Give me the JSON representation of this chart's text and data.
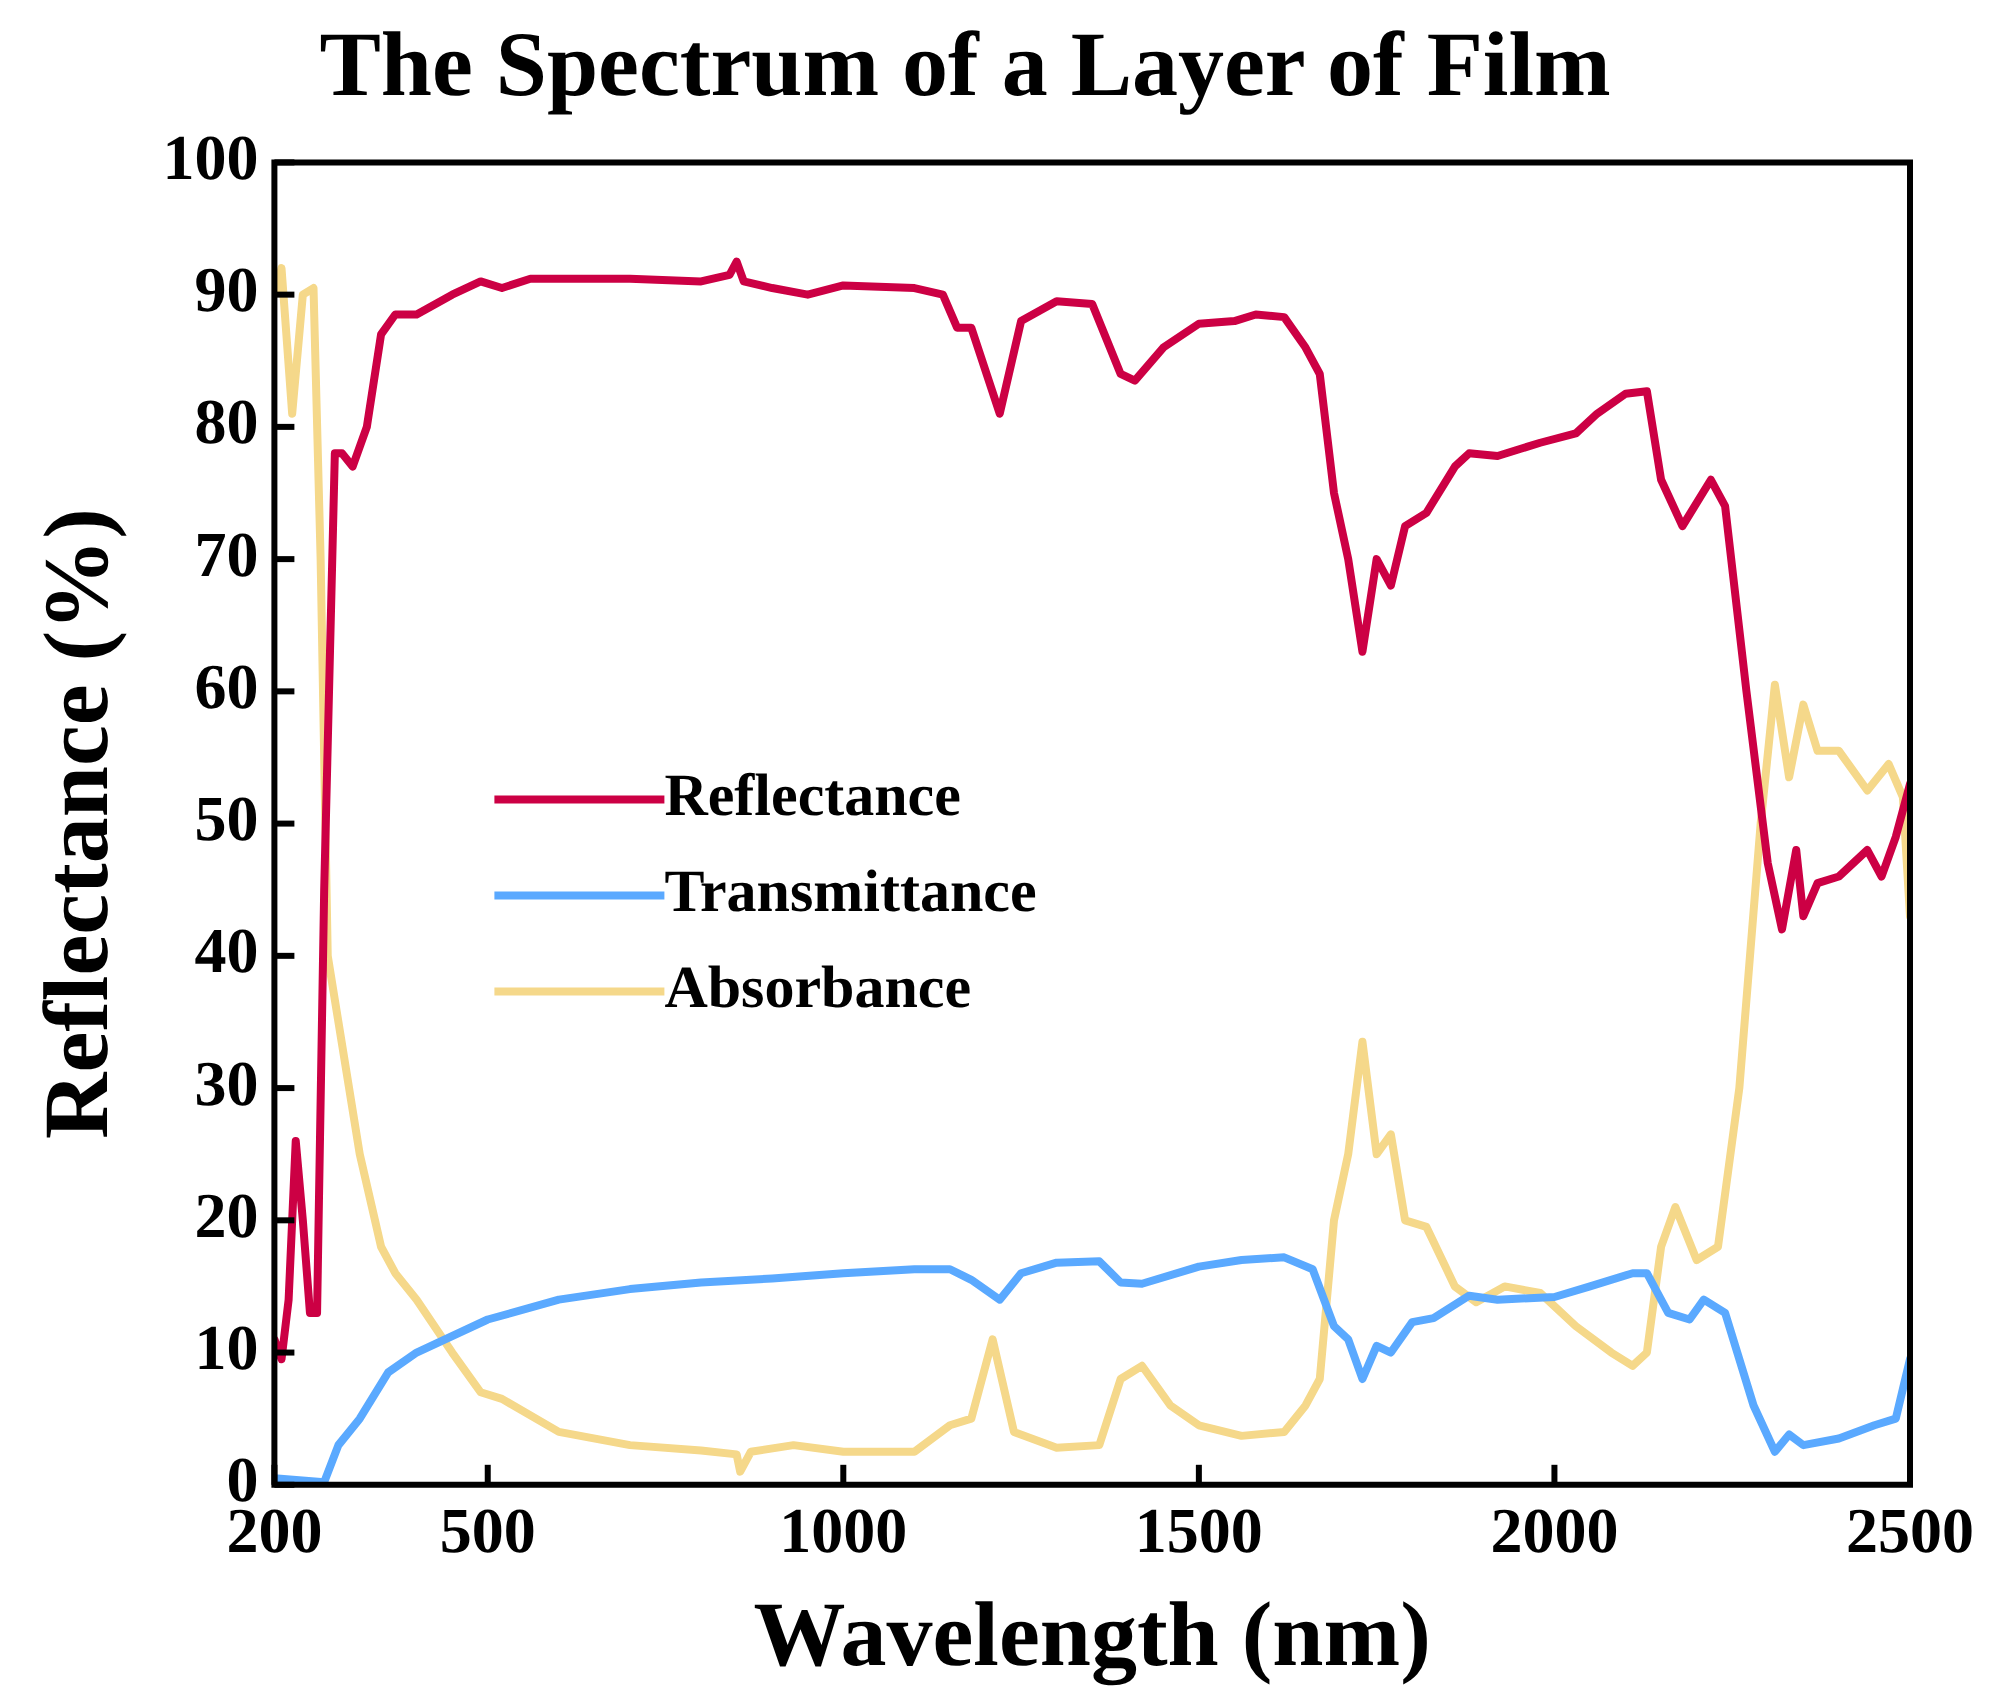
{
  "chart_data": {
    "type": "line",
    "title": "The Spectrum of a Layer of Film",
    "xlabel": "Wavelength (nm)",
    "ylabel": "Reflectance (%)",
    "xlim": [
      200,
      2500
    ],
    "xticks": [
      200,
      500,
      1000,
      1500,
      2000,
      2500
    ],
    "ylim": [
      0,
      100
    ],
    "yticks": [
      0,
      10,
      20,
      30,
      40,
      50,
      60,
      70,
      80,
      90,
      100
    ],
    "grid": false,
    "legend": "center left",
    "marker": "none",
    "line_style": "solid",
    "series": [
      {
        "name": "Reflectance",
        "color": "#cc0044",
        "x": [
          200,
          210,
          220,
          230,
          240,
          250,
          260,
          270,
          285,
          295,
          310,
          330,
          350,
          370,
          400,
          450,
          490,
          520,
          560,
          700,
          800,
          840,
          850,
          860,
          900,
          950,
          1000,
          1100,
          1140,
          1160,
          1180,
          1220,
          1250,
          1300,
          1350,
          1390,
          1410,
          1450,
          1500,
          1550,
          1580,
          1620,
          1650,
          1670,
          1690,
          1710,
          1730,
          1750,
          1770,
          1790,
          1820,
          1860,
          1880,
          1920,
          1980,
          2030,
          2060,
          2100,
          2130,
          2150,
          2180,
          2220,
          2240,
          2270,
          2300,
          2320,
          2340,
          2350,
          2370,
          2400,
          2440,
          2460,
          2480,
          2500
        ],
        "values": [
          11,
          9.5,
          14,
          26,
          20,
          13,
          13,
          45,
          78,
          78,
          77,
          80,
          87,
          88.5,
          88.5,
          90,
          91,
          90.5,
          91.2,
          91.2,
          91,
          91.5,
          92.5,
          91,
          90.5,
          90,
          90.7,
          90.5,
          90,
          87.5,
          87.5,
          81,
          88,
          89.5,
          89.3,
          84,
          83.5,
          86,
          87.8,
          88,
          88.5,
          88.3,
          86,
          84,
          75,
          70,
          63,
          70,
          68,
          72.5,
          73.5,
          77,
          78,
          77.8,
          78.8,
          79.5,
          81,
          82.5,
          82.7,
          76,
          72.5,
          76,
          74,
          60,
          47,
          42,
          48,
          43,
          45.5,
          46,
          48,
          46,
          49,
          53
        ]
      },
      {
        "name": "Transmittance",
        "color": "#5aa9ff",
        "x": [
          200,
          270,
          290,
          320,
          360,
          400,
          500,
          600,
          700,
          800,
          900,
          1000,
          1100,
          1150,
          1180,
          1220,
          1250,
          1300,
          1360,
          1390,
          1420,
          1500,
          1560,
          1620,
          1660,
          1690,
          1710,
          1730,
          1750,
          1770,
          1800,
          1830,
          1880,
          1920,
          2000,
          2050,
          2110,
          2130,
          2160,
          2190,
          2210,
          2240,
          2280,
          2310,
          2330,
          2350,
          2400,
          2450,
          2480,
          2500
        ],
        "values": [
          0.5,
          0.2,
          3,
          5,
          8.5,
          10,
          12.5,
          14,
          14.8,
          15.3,
          15.6,
          16,
          16.3,
          16.3,
          15.5,
          14,
          16,
          16.8,
          16.9,
          15.3,
          15.2,
          16.5,
          17,
          17.2,
          16.3,
          12,
          11,
          8,
          10.5,
          10,
          12.3,
          12.6,
          14.3,
          14,
          14.2,
          15,
          16,
          16,
          13,
          12.5,
          14,
          13,
          6,
          2.5,
          3.8,
          3,
          3.5,
          4.5,
          5,
          9.5
        ]
      },
      {
        "name": "Absorbance",
        "color": "#f5d88a",
        "x": [
          200,
          210,
          225,
          240,
          255,
          265,
          275,
          290,
          320,
          350,
          370,
          400,
          450,
          490,
          520,
          600,
          700,
          800,
          850,
          855,
          870,
          930,
          1000,
          1100,
          1150,
          1180,
          1210,
          1240,
          1300,
          1360,
          1390,
          1420,
          1460,
          1500,
          1560,
          1620,
          1650,
          1670,
          1690,
          1710,
          1730,
          1750,
          1770,
          1790,
          1820,
          1860,
          1890,
          1930,
          1980,
          2030,
          2080,
          2110,
          2130,
          2150,
          2170,
          2200,
          2230,
          2260,
          2290,
          2310,
          2330,
          2350,
          2370,
          2400,
          2440,
          2470,
          2490,
          2500
        ],
        "values": [
          90,
          92,
          81,
          90,
          90.5,
          70,
          40,
          35,
          25,
          18,
          16,
          14,
          10,
          7,
          6.5,
          4,
          3,
          2.6,
          2.3,
          1,
          2.5,
          3,
          2.5,
          2.5,
          4.5,
          5,
          11,
          4,
          2.8,
          3,
          8,
          9,
          6,
          4.5,
          3.7,
          4,
          6,
          8,
          20,
          25,
          33.5,
          25,
          26.5,
          20,
          19.5,
          15,
          13.8,
          15,
          14.5,
          12,
          10,
          9,
          10,
          18,
          21,
          17,
          18,
          30,
          50,
          60.5,
          53.5,
          59,
          55.5,
          55.5,
          52.5,
          54.5,
          52,
          43
        ]
      }
    ]
  }
}
